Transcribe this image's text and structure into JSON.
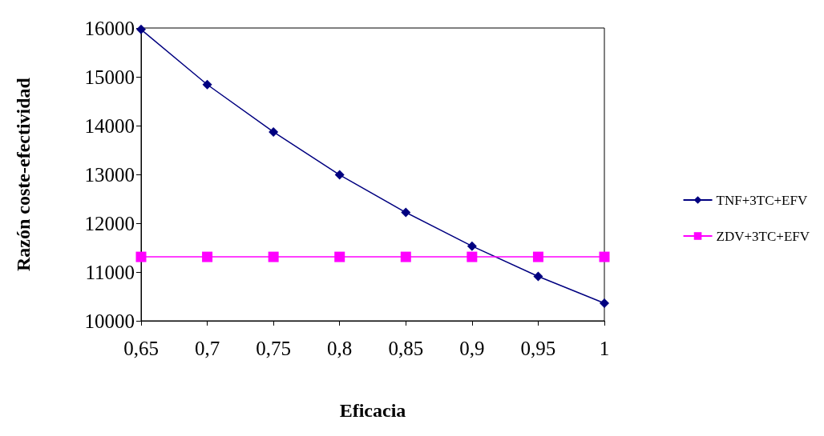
{
  "chart_data": {
    "type": "line",
    "xlabel": "Eficacia",
    "ylabel": "Razón coste-efectividad",
    "categories": [
      "0,65",
      "0,7",
      "0,75",
      "0,8",
      "0,85",
      "0,9",
      "0,95",
      "1"
    ],
    "series": [
      {
        "name": "TNF+3TC+EFV",
        "color": "#000080",
        "marker": "diamond",
        "values": [
          15970,
          14840,
          13870,
          12990,
          12220,
          11530,
          10910,
          10360
        ]
      },
      {
        "name": "ZDV+3TC+EFV",
        "color": "#ff00ff",
        "marker": "square",
        "values": [
          11310,
          11310,
          11310,
          11310,
          11310,
          11310,
          11310,
          11310
        ]
      }
    ],
    "ylim": [
      10000,
      16000
    ],
    "yticks": [
      10000,
      11000,
      12000,
      13000,
      14000,
      15000,
      16000
    ],
    "grid": false,
    "legend": "right",
    "line_style": "solid"
  }
}
